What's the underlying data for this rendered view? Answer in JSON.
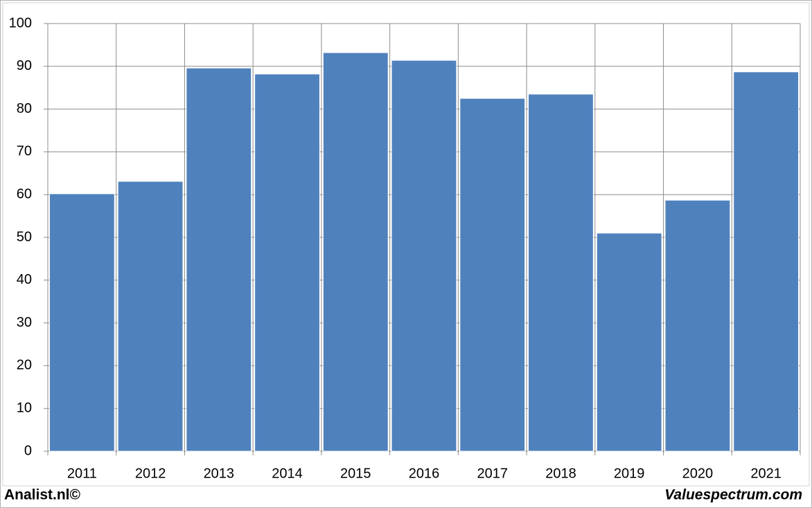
{
  "chart_data": {
    "type": "bar",
    "categories": [
      "2011",
      "2012",
      "2013",
      "2014",
      "2015",
      "2016",
      "2017",
      "2018",
      "2019",
      "2020",
      "2021"
    ],
    "values": [
      60.2,
      63.1,
      89.6,
      88.2,
      93.2,
      91.4,
      82.5,
      83.5,
      51.0,
      58.7,
      88.7
    ],
    "color": "#4f81bd",
    "ylim": [
      0,
      100
    ],
    "yticks": [
      0,
      10,
      20,
      30,
      40,
      50,
      60,
      70,
      80,
      90,
      100
    ],
    "grid": true,
    "footer_left": "Analist.nl©",
    "footer_right": "Valuespectrum.com"
  }
}
